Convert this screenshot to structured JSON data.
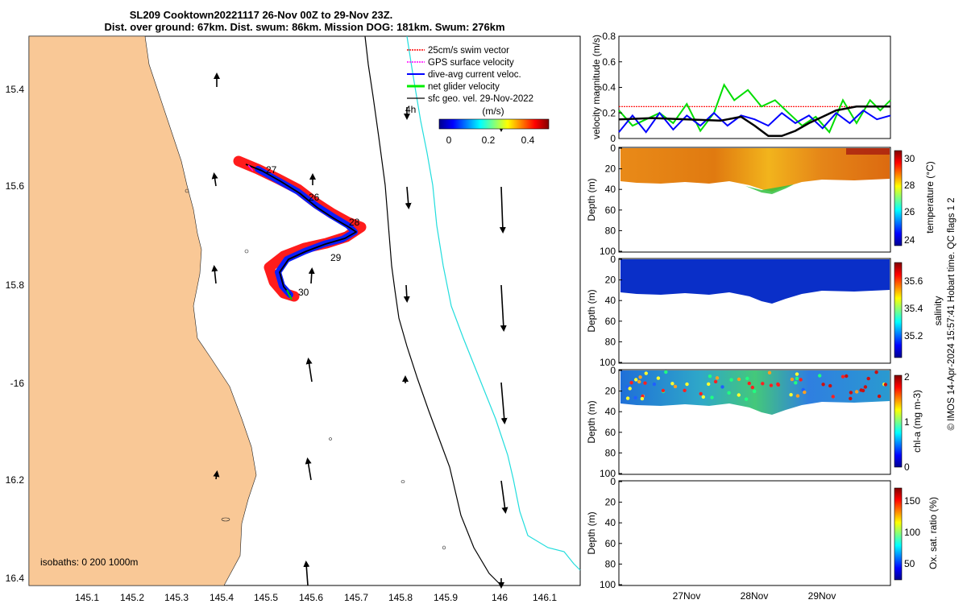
{
  "title": {
    "line1": "SL209 Cooktown20221117 26-Nov 00Z to 29-Nov 23Z.",
    "line2": "Dist. over ground: 67km. Dist. swum: 86km. Mission DOG: 181km. Swum: 276km"
  },
  "colors": {
    "land": "#f9c896",
    "swim": "#ff0000",
    "gps": "#ff00ff",
    "current": "#0000ff",
    "net": "#00ee00",
    "geo": "#000000",
    "isobath_200": "#000000",
    "isobath_1000": "#22dddd"
  },
  "map": {
    "lon_ticks": [
      "145.1",
      "145.2",
      "145.3",
      "145.4",
      "145.5",
      "145.6",
      "145.7",
      "145.8",
      "145.9",
      "146",
      "146.1"
    ],
    "lat_ticks": [
      "15.4",
      "15.6",
      "15.8",
      "-16",
      "16.2",
      "16.4"
    ],
    "isobaths_label": "isobaths: 0   200  1000m",
    "day_labels": [
      "27",
      "26",
      "28",
      "29",
      "30"
    ],
    "time_label": "4h",
    "legend": [
      {
        "label": "25cm/s swim vector",
        "color": "#ff0000"
      },
      {
        "label": "GPS surface velocity",
        "color": "#ff00ff"
      },
      {
        "label": "dive-avg current veloc.",
        "color": "#0000ff"
      },
      {
        "label": "net glider velocity",
        "color": "#00ee00"
      },
      {
        "label": "sfc geo. vel. 29-Nov-2022",
        "color": "#000000"
      }
    ],
    "colorbar": {
      "label": "(m/s)",
      "ticks": [
        "0",
        "0.2",
        "0.4"
      ]
    }
  },
  "chart_data": [
    {
      "type": "line",
      "title": "",
      "ylabel": "velocity magnitude (m/s)",
      "ylim": [
        0,
        0.8
      ],
      "yticks": [
        "0",
        "0.2",
        "0.4",
        "0.6",
        "0.8"
      ],
      "xlim_days": [
        0,
        4
      ],
      "series": [
        {
          "name": "swim speed",
          "color": "#ff0000",
          "x": [
            0,
            4
          ],
          "values": [
            0.25,
            0.25
          ]
        },
        {
          "name": "net glider velocity",
          "color": "#00dd00",
          "x": [
            0,
            0.2,
            0.4,
            0.6,
            0.8,
            1.0,
            1.2,
            1.4,
            1.55,
            1.7,
            1.9,
            2.1,
            2.3,
            2.5,
            2.7,
            2.9,
            3.1,
            3.3,
            3.5,
            3.7,
            3.85,
            4.0
          ],
          "values": [
            0.22,
            0.1,
            0.15,
            0.2,
            0.12,
            0.27,
            0.06,
            0.2,
            0.42,
            0.3,
            0.38,
            0.25,
            0.3,
            0.2,
            0.1,
            0.17,
            0.05,
            0.3,
            0.12,
            0.3,
            0.22,
            0.3
          ]
        },
        {
          "name": "dive-avg current",
          "color": "#0000ff",
          "x": [
            0,
            0.2,
            0.4,
            0.6,
            0.8,
            1.0,
            1.2,
            1.4,
            1.6,
            1.8,
            2.0,
            2.2,
            2.4,
            2.6,
            2.8,
            3.0,
            3.2,
            3.4,
            3.6,
            3.8,
            4.0
          ],
          "values": [
            0.05,
            0.18,
            0.05,
            0.2,
            0.07,
            0.18,
            0.1,
            0.2,
            0.1,
            0.18,
            0.15,
            0.1,
            0.2,
            0.12,
            0.18,
            0.08,
            0.2,
            0.12,
            0.22,
            0.15,
            0.18
          ]
        },
        {
          "name": "geostrophic",
          "color": "#000000",
          "x": [
            0,
            0.5,
            1.0,
            1.5,
            1.8,
            2.0,
            2.2,
            2.4,
            2.6,
            2.8,
            3.0,
            3.2,
            3.5,
            4.0
          ],
          "values": [
            0.15,
            0.16,
            0.15,
            0.14,
            0.17,
            0.1,
            0.02,
            0.02,
            0.06,
            0.12,
            0.17,
            0.22,
            0.25,
            0.25
          ]
        }
      ]
    },
    {
      "type": "heatmap",
      "ylabel": "Depth (m)",
      "yticks": [
        "0",
        "20",
        "40",
        "60",
        "80",
        "100"
      ],
      "ylim": [
        100,
        0
      ],
      "colorbar_label": "temperature (°C)",
      "colorbar_ticks": [
        "30",
        "28",
        "26",
        "24"
      ],
      "crange": [
        23.5,
        30.5
      ]
    },
    {
      "type": "heatmap",
      "ylabel": "Depth (m)",
      "yticks": [
        "0",
        "20",
        "40",
        "60",
        "80",
        "100"
      ],
      "ylim": [
        100,
        0
      ],
      "colorbar_label": "salinity",
      "colorbar_ticks": [
        "35.6",
        "35.4",
        "35.2"
      ],
      "crange": [
        35.05,
        35.75
      ]
    },
    {
      "type": "heatmap",
      "ylabel": "Depth (m)",
      "yticks": [
        "0",
        "20",
        "40",
        "60",
        "80",
        "100"
      ],
      "ylim": [
        100,
        0
      ],
      "colorbar_label": "chl-a (mg m-3)",
      "colorbar_ticks": [
        "2",
        "1",
        "0"
      ],
      "crange": [
        0,
        2
      ]
    },
    {
      "type": "heatmap",
      "ylabel": "Depth (m)",
      "yticks": [
        "0",
        "20",
        "40",
        "60",
        "80",
        "100"
      ],
      "ylim": [
        100,
        0
      ],
      "colorbar_label": "Ox. sat. ratio (%)",
      "colorbar_ticks": [
        "150",
        "100",
        "50"
      ],
      "crange": [
        25,
        175
      ],
      "xticks": [
        "27Nov",
        "28Nov",
        "29Nov"
      ]
    }
  ],
  "side_note": "© IMOS 14-Apr-2024 15:57:41 Hobart time. QC flags 1  2"
}
